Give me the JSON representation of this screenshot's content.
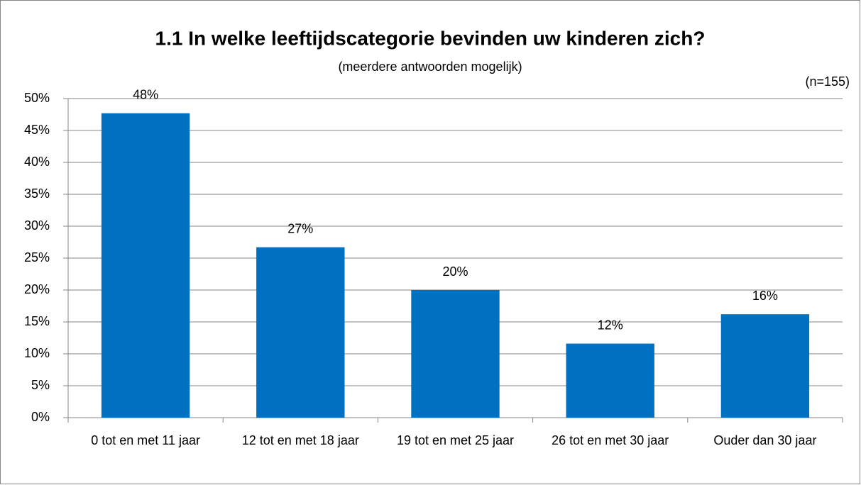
{
  "chart_data": {
    "type": "bar",
    "title": "1.1 In welke leeftijdscategorie bevinden uw kinderen zich?",
    "subtitle": "(meerdere antwoorden mogelijk)",
    "annotation": "(n=155)",
    "categories": [
      "0 tot en met 11 jaar",
      "12 tot en met 18 jaar",
      "19 tot en met 25 jaar",
      "26 tot en met 30 jaar",
      "Ouder dan 30 jaar"
    ],
    "values": [
      47.7,
      26.7,
      20,
      11.6,
      16.2
    ],
    "value_labels": [
      "48%",
      "27%",
      "20%",
      "12%",
      "16%"
    ],
    "color": "#0070c0",
    "ylim": [
      0,
      50
    ],
    "yticks": [
      {
        "value": 0,
        "label": "0%"
      },
      {
        "value": 5,
        "label": "5%"
      },
      {
        "value": 10,
        "label": "10%"
      },
      {
        "value": 15,
        "label": "15%"
      },
      {
        "value": 20,
        "label": "20%"
      },
      {
        "value": 25,
        "label": "25%"
      },
      {
        "value": 30,
        "label": "30%"
      },
      {
        "value": 35,
        "label": "35%"
      },
      {
        "value": 40,
        "label": "40%"
      },
      {
        "value": 45,
        "label": "45%"
      },
      {
        "value": 50,
        "label": "50%"
      }
    ],
    "grid": true
  }
}
